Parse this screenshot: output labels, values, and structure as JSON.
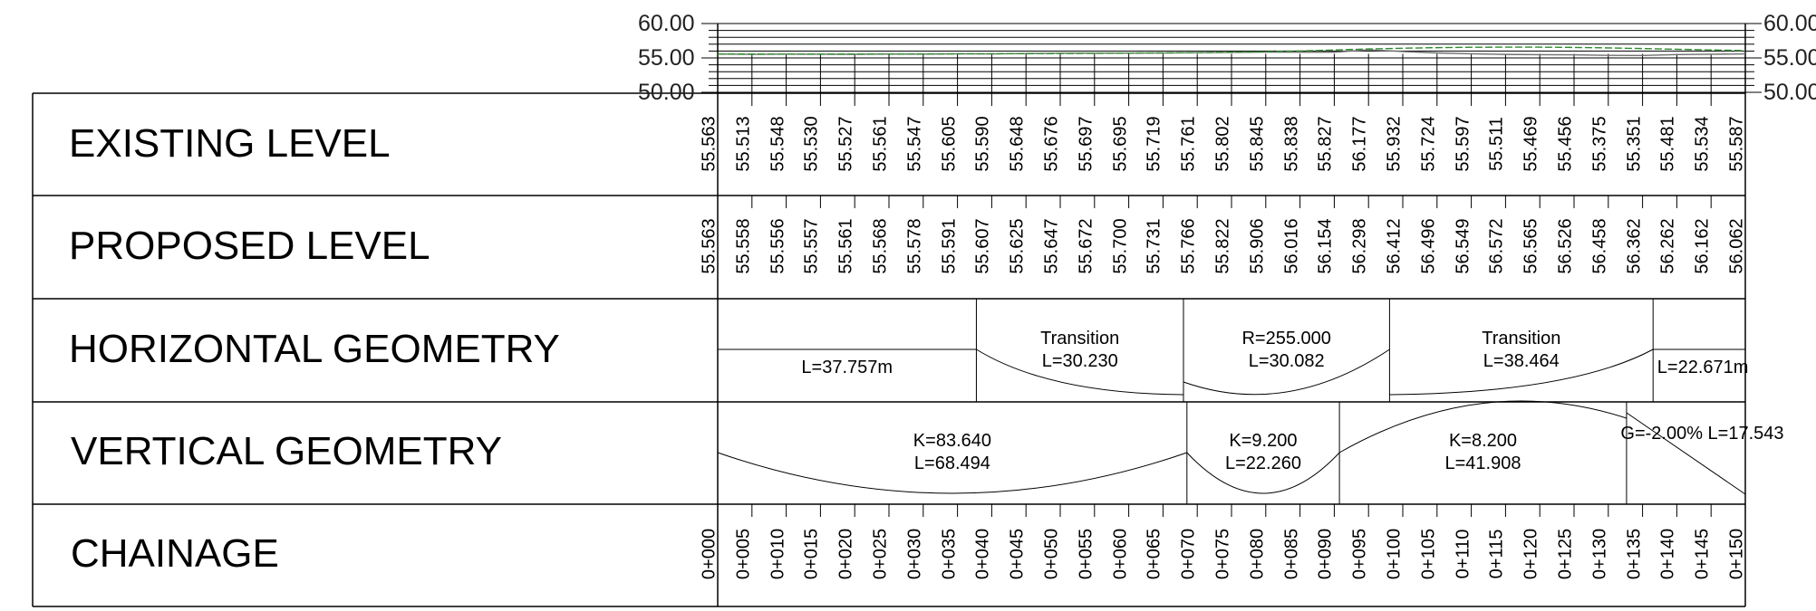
{
  "profile": {
    "left_labels": [
      "60.00",
      "55.00",
      "50.00"
    ],
    "right_labels": [
      "60.00",
      "55.00",
      "50.00"
    ],
    "y_range": [
      50,
      60
    ],
    "existing_color": "#6e6e6e",
    "proposed_color": "#2e8b2e"
  },
  "rows": [
    {
      "title": "EXISTING LEVEL"
    },
    {
      "title": "PROPOSED LEVEL"
    },
    {
      "title": "HORIZONTAL GEOMETRY"
    },
    {
      "title": "VERTICAL GEOMETRY"
    },
    {
      "title": "CHAINAGE"
    }
  ],
  "existing_levels": [
    "55.563",
    "55.513",
    "55.548",
    "55.530",
    "55.527",
    "55.561",
    "55.547",
    "55.605",
    "55.590",
    "55.648",
    "55.676",
    "55.697",
    "55.695",
    "55.719",
    "55.761",
    "55.802",
    "55.845",
    "55.838",
    "55.827",
    "56.177",
    "55.932",
    "55.724",
    "55.597",
    "55.511",
    "55.469",
    "55.456",
    "55.375",
    "55.351",
    "55.481",
    "55.534",
    "55.587"
  ],
  "proposed_levels": [
    "55.563",
    "55.558",
    "55.556",
    "55.557",
    "55.561",
    "55.568",
    "55.578",
    "55.591",
    "55.607",
    "55.625",
    "55.647",
    "55.672",
    "55.700",
    "55.731",
    "55.766",
    "55.822",
    "55.906",
    "56.016",
    "56.154",
    "56.298",
    "56.412",
    "56.496",
    "56.549",
    "56.572",
    "56.565",
    "56.526",
    "56.458",
    "56.362",
    "56.262",
    "56.162",
    "56.062"
  ],
  "chainages": [
    "0+000",
    "0+005",
    "0+010",
    "0+015",
    "0+020",
    "0+025",
    "0+030",
    "0+035",
    "0+040",
    "0+045",
    "0+050",
    "0+055",
    "0+060",
    "0+065",
    "0+070",
    "0+075",
    "0+080",
    "0+085",
    "0+090",
    "0+095",
    "0+100",
    "0+105",
    "0+110",
    "0+115",
    "0+120",
    "0+125",
    "0+130",
    "0+135",
    "0+140",
    "0+145",
    "0+150"
  ],
  "horizontal_geometry": [
    {
      "type": "straight",
      "start": 0,
      "end": 37.757,
      "lines": [
        "L=37.757m"
      ]
    },
    {
      "type": "transition",
      "start": 37.757,
      "end": 67.987,
      "lines": [
        "Transition",
        "L=30.230"
      ]
    },
    {
      "type": "curve",
      "start": 67.987,
      "end": 98.069,
      "lines": [
        "R=255.000",
        "L=30.082"
      ]
    },
    {
      "type": "transition-out",
      "start": 98.069,
      "end": 136.533,
      "lines": [
        "Transition",
        "L=38.464"
      ]
    },
    {
      "type": "straight",
      "start": 136.533,
      "end": 150,
      "lines": [
        "L=22.671m"
      ]
    }
  ],
  "vertical_geometry": [
    {
      "type": "sag",
      "start": 0,
      "end": 68.494,
      "lines": [
        "K=83.640",
        "L=68.494"
      ]
    },
    {
      "type": "sag",
      "start": 68.494,
      "end": 90.754,
      "lines": [
        "K=9.200",
        "L=22.260"
      ]
    },
    {
      "type": "crest",
      "start": 90.754,
      "end": 132.662,
      "lines": [
        "K=8.200",
        "L=41.908"
      ]
    },
    {
      "type": "grade",
      "start": 132.662,
      "end": 150,
      "lines": [
        "G=-2.00% L=17.543"
      ]
    }
  ]
}
